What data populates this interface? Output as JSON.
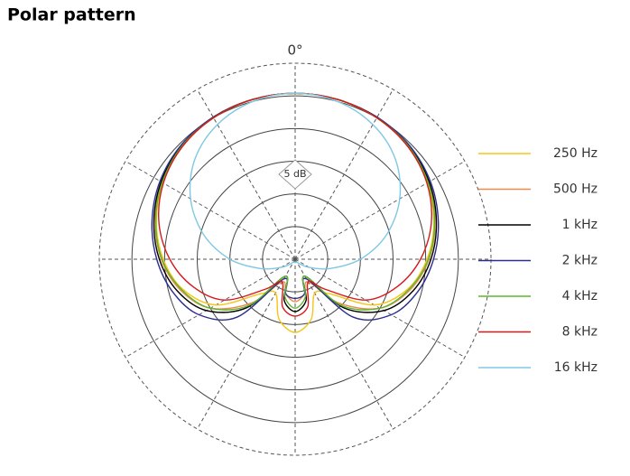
{
  "chart_data": {
    "type": "polar",
    "title": "Polar pattern",
    "angle_label": "0°",
    "scale_label": "5 dB",
    "rlim": [
      -30,
      0
    ],
    "rticks": [
      -25,
      -20,
      -15,
      -10,
      -5
    ],
    "thetaticks": [
      0,
      30,
      60,
      90,
      120,
      150,
      180,
      210,
      240,
      270,
      300,
      330
    ],
    "theta": [
      0,
      15,
      30,
      45,
      60,
      75,
      90,
      105,
      120,
      135,
      150,
      165,
      180,
      195,
      210,
      225,
      240,
      255,
      270,
      285,
      300,
      315,
      330,
      345
    ],
    "series": [
      {
        "name": "250 Hz",
        "color": "#f5c518",
        "values": [
          -4.6,
          -4.7,
          -5.0,
          -5.6,
          -6.6,
          -8.0,
          -9.8,
          -12.2,
          -16.0,
          -22.5,
          -24.0,
          -20.5,
          -18.8,
          -20.5,
          -24.0,
          -22.5,
          -16.0,
          -12.2,
          -9.8,
          -8.0,
          -6.6,
          -5.6,
          -5.0,
          -4.7
        ]
      },
      {
        "name": "500 Hz",
        "color": "#f08a4b",
        "values": [
          -4.6,
          -4.7,
          -4.9,
          -5.4,
          -6.4,
          -7.8,
          -9.5,
          -11.8,
          -15.0,
          -20.5,
          -26.0,
          -24.5,
          -23.5,
          -24.5,
          -26.0,
          -20.5,
          -15.0,
          -11.8,
          -9.5,
          -7.8,
          -6.4,
          -5.4,
          -4.9,
          -4.7
        ]
      },
      {
        "name": "1 kHz",
        "color": "#000000",
        "values": [
          -4.6,
          -4.7,
          -4.9,
          -5.4,
          -6.3,
          -7.6,
          -9.2,
          -11.3,
          -14.3,
          -19.5,
          -27.0,
          -23.5,
          -22.0,
          -23.5,
          -27.0,
          -19.5,
          -14.3,
          -11.3,
          -9.2,
          -7.6,
          -6.3,
          -5.4,
          -4.9,
          -4.7
        ]
      },
      {
        "name": "2 kHz",
        "color": "#2e2e8f",
        "values": [
          -4.6,
          -4.7,
          -4.9,
          -5.3,
          -6.1,
          -7.3,
          -8.8,
          -10.6,
          -13.0,
          -17.5,
          -26.5,
          -24.5,
          -24.0,
          -24.5,
          -26.5,
          -17.5,
          -13.0,
          -10.6,
          -8.8,
          -7.3,
          -6.1,
          -5.3,
          -4.9,
          -4.7
        ]
      },
      {
        "name": "4 kHz",
        "color": "#5cb82e",
        "values": [
          -4.6,
          -4.7,
          -5.0,
          -5.5,
          -6.5,
          -7.9,
          -9.6,
          -12.0,
          -15.0,
          -20.0,
          -27.0,
          -24.0,
          -22.5,
          -24.0,
          -27.0,
          -20.0,
          -15.0,
          -12.0,
          -9.6,
          -7.9,
          -6.5,
          -5.5,
          -5.0,
          -4.7
        ]
      },
      {
        "name": "8 kHz",
        "color": "#d7191c",
        "values": [
          -4.6,
          -4.7,
          -5.0,
          -5.6,
          -6.7,
          -8.4,
          -10.8,
          -13.8,
          -17.5,
          -23.5,
          -26.0,
          -22.5,
          -21.3,
          -22.5,
          -26.0,
          -23.5,
          -17.5,
          -13.8,
          -10.8,
          -8.4,
          -6.7,
          -5.6,
          -5.0,
          -4.7
        ]
      },
      {
        "name": "16 kHz",
        "color": "#7ec8e3",
        "values": [
          -4.6,
          -5.0,
          -6.2,
          -8.3,
          -11.5,
          -15.5,
          -20.0,
          -24.5,
          -27.5,
          -29.0,
          -29.5,
          -29.5,
          -29.5,
          -29.5,
          -29.5,
          -29.0,
          -27.5,
          -24.5,
          -20.0,
          -15.5,
          -11.5,
          -8.3,
          -6.2,
          -5.0
        ]
      }
    ]
  }
}
